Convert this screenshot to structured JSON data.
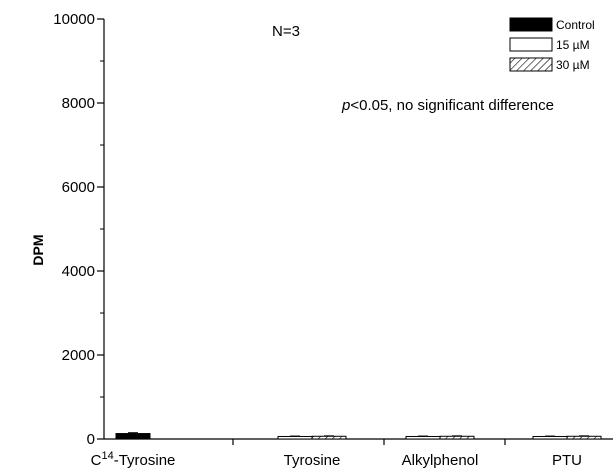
{
  "chart_data": {
    "type": "bar",
    "ylabel": "DPM",
    "ylim": [
      0,
      10000
    ],
    "yticks": [
      0,
      2000,
      4000,
      6000,
      8000,
      10000
    ],
    "grid": false,
    "legend_position": "top-right",
    "categories": [
      {
        "prefix": "C",
        "sup": "14",
        "suffix": "-Tyrosine"
      },
      {
        "prefix": "Tyrosine",
        "sup": "",
        "suffix": ""
      },
      {
        "prefix": "Alkylphenol",
        "sup": "",
        "suffix": ""
      },
      {
        "prefix": "PTU",
        "sup": "",
        "suffix": ""
      }
    ],
    "series": [
      {
        "name": "Control",
        "fill": "solid",
        "color": "#000000",
        "values": [
          130,
          null,
          null,
          null
        ],
        "errors": [
          20,
          null,
          null,
          null
        ]
      },
      {
        "name": "15 µM",
        "fill": "open",
        "color": "#ffffff",
        "values": [
          null,
          60,
          60,
          60
        ],
        "errors": [
          null,
          10,
          10,
          10
        ]
      },
      {
        "name": "30 µM",
        "fill": "hatched",
        "color": "#ffffff",
        "values": [
          null,
          65,
          65,
          65
        ],
        "errors": [
          null,
          10,
          10,
          10
        ]
      }
    ],
    "annotations": {
      "n_label": "N=3",
      "significance": {
        "italic": "p",
        "rest": "<0.05, no significant difference"
      }
    }
  }
}
